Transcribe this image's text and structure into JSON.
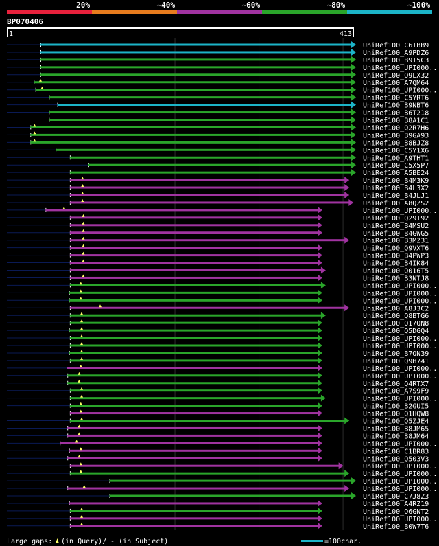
{
  "chart_data": {
    "type": "alignment-overview",
    "title": "BP070406",
    "query_start": "1",
    "query_end": "413",
    "query_length": 413,
    "identity_legend": [
      {
        "label": "20%",
        "color": "#e8213c"
      },
      {
        "label": "~40%",
        "color": "#e87c1e"
      },
      {
        "label": "~60%",
        "color": "#a033a0"
      },
      {
        "label": "~80%",
        "color": "#2aa52a"
      },
      {
        "label": "~100%",
        "color": "#1cb4c8"
      }
    ],
    "footer": {
      "gaps_label": "Large gaps:",
      "gaps_query": "(in Query)/",
      "gaps_subject": "- (in Subject)",
      "scale_label": "=100char."
    },
    "hits": [
      {
        "name": "UniRef100_C6TBB9",
        "start": 40,
        "end": 413,
        "pct": 100,
        "gaps": []
      },
      {
        "name": "UniRef100_A9PDZ6",
        "start": 40,
        "end": 413,
        "pct": 100,
        "gaps": []
      },
      {
        "name": "UniRef100_B9T5C3",
        "start": 40,
        "end": 413,
        "pct": 80,
        "gaps": []
      },
      {
        "name": "UniRef100_UPI000..",
        "start": 40,
        "end": 413,
        "pct": 80,
        "gaps": []
      },
      {
        "name": "UniRef100_Q9LX32",
        "start": 40,
        "end": 413,
        "pct": 80,
        "gaps": []
      },
      {
        "name": "UniRef100_A7QM64",
        "start": 32,
        "end": 413,
        "pct": 80,
        "gaps": [
          40
        ]
      },
      {
        "name": "UniRef100_UPI000..",
        "start": 34,
        "end": 413,
        "pct": 80,
        "gaps": [
          42
        ]
      },
      {
        "name": "UniRef100_C5YRT6",
        "start": 50,
        "end": 413,
        "pct": 80,
        "gaps": []
      },
      {
        "name": "UniRef100_B9NBT6",
        "start": 60,
        "end": 413,
        "pct": 100,
        "gaps": []
      },
      {
        "name": "UniRef100_B6T218",
        "start": 50,
        "end": 413,
        "pct": 80,
        "gaps": []
      },
      {
        "name": "UniRef100_B8A1C1",
        "start": 50,
        "end": 413,
        "pct": 80,
        "gaps": []
      },
      {
        "name": "UniRef100_Q2R7H6",
        "start": 28,
        "end": 413,
        "pct": 80,
        "gaps": [
          33
        ]
      },
      {
        "name": "UniRef100_B9GA93",
        "start": 28,
        "end": 413,
        "pct": 80,
        "gaps": [
          33
        ]
      },
      {
        "name": "UniRef100_B8BJZ8",
        "start": 28,
        "end": 413,
        "pct": 80,
        "gaps": [
          33
        ]
      },
      {
        "name": "UniRef100_C5Y1X6",
        "start": 58,
        "end": 413,
        "pct": 80,
        "gaps": []
      },
      {
        "name": "UniRef100_A9THT1",
        "start": 75,
        "end": 413,
        "pct": 80,
        "gaps": []
      },
      {
        "name": "UniRef100_C5X5P7",
        "start": 97,
        "end": 413,
        "pct": 80,
        "gaps": []
      },
      {
        "name": "UniRef100_A5BE24",
        "start": 75,
        "end": 413,
        "pct": 80,
        "gaps": []
      },
      {
        "name": "UniRef100_B4M3K9",
        "start": 75,
        "end": 405,
        "pct": 60,
        "gaps": [
          90
        ]
      },
      {
        "name": "UniRef100_B4L3X2",
        "start": 75,
        "end": 405,
        "pct": 60,
        "gaps": [
          90
        ]
      },
      {
        "name": "UniRef100_B4JLJ1",
        "start": 75,
        "end": 405,
        "pct": 60,
        "gaps": [
          90
        ]
      },
      {
        "name": "UniRef100_A8QZS2",
        "start": 75,
        "end": 410,
        "pct": 60,
        "gaps": [
          90
        ]
      },
      {
        "name": "UniRef100_UPI000..",
        "start": 46,
        "end": 373,
        "pct": 60,
        "gaps": [
          68
        ]
      },
      {
        "name": "UniRef100_Q29I92",
        "start": 75,
        "end": 373,
        "pct": 60,
        "gaps": [
          91
        ]
      },
      {
        "name": "UniRef100_B4MSU2",
        "start": 75,
        "end": 373,
        "pct": 60,
        "gaps": [
          91
        ]
      },
      {
        "name": "UniRef100_B4GWG5",
        "start": 75,
        "end": 373,
        "pct": 60,
        "gaps": [
          91
        ]
      },
      {
        "name": "UniRef100_B3MZ31",
        "start": 75,
        "end": 405,
        "pct": 60,
        "gaps": [
          91
        ]
      },
      {
        "name": "UniRef100_Q9VXT6",
        "start": 75,
        "end": 373,
        "pct": 60,
        "gaps": [
          91
        ]
      },
      {
        "name": "UniRef100_B4PWP3",
        "start": 75,
        "end": 373,
        "pct": 60,
        "gaps": [
          91
        ]
      },
      {
        "name": "UniRef100_B4IK84",
        "start": 75,
        "end": 373,
        "pct": 60,
        "gaps": [
          91
        ]
      },
      {
        "name": "UniRef100_Q016T5",
        "start": 75,
        "end": 377,
        "pct": 60,
        "gaps": []
      },
      {
        "name": "UniRef100_B3NTJ8",
        "start": 75,
        "end": 373,
        "pct": 60,
        "gaps": [
          91
        ]
      },
      {
        "name": "UniRef100_UPI000..",
        "start": 75,
        "end": 377,
        "pct": 80,
        "gaps": [
          88
        ]
      },
      {
        "name": "UniRef100_UPI000..",
        "start": 74,
        "end": 373,
        "pct": 80,
        "gaps": [
          88
        ]
      },
      {
        "name": "UniRef100_UPI000..",
        "start": 74,
        "end": 373,
        "pct": 80,
        "gaps": [
          88
        ]
      },
      {
        "name": "UniRef100_A8J3C2",
        "start": 75,
        "end": 405,
        "pct": 60,
        "gaps": [
          111
        ]
      },
      {
        "name": "UniRef100_Q8BTG6",
        "start": 75,
        "end": 377,
        "pct": 80,
        "gaps": [
          89
        ]
      },
      {
        "name": "UniRef100_Q17QN8",
        "start": 75,
        "end": 373,
        "pct": 80,
        "gaps": [
          89
        ]
      },
      {
        "name": "UniRef100_Q5DGQ4",
        "start": 74,
        "end": 373,
        "pct": 80,
        "gaps": [
          89
        ]
      },
      {
        "name": "UniRef100_UPI000..",
        "start": 75,
        "end": 373,
        "pct": 80,
        "gaps": [
          89
        ]
      },
      {
        "name": "UniRef100_UPI000..",
        "start": 75,
        "end": 373,
        "pct": 80,
        "gaps": [
          89
        ]
      },
      {
        "name": "UniRef100_B7QN39",
        "start": 74,
        "end": 373,
        "pct": 80,
        "gaps": [
          89
        ]
      },
      {
        "name": "UniRef100_Q9H741",
        "start": 75,
        "end": 373,
        "pct": 80,
        "gaps": [
          89
        ]
      },
      {
        "name": "UniRef100_UPI000..",
        "start": 71,
        "end": 373,
        "pct": 60,
        "gaps": [
          88
        ]
      },
      {
        "name": "UniRef100_UPI000..",
        "start": 72,
        "end": 373,
        "pct": 80,
        "gaps": [
          86
        ]
      },
      {
        "name": "UniRef100_Q4RTX7",
        "start": 72,
        "end": 373,
        "pct": 80,
        "gaps": [
          86
        ]
      },
      {
        "name": "UniRef100_A7S9F9",
        "start": 75,
        "end": 373,
        "pct": 80,
        "gaps": [
          89
        ]
      },
      {
        "name": "UniRef100_UPI000..",
        "start": 75,
        "end": 377,
        "pct": 80,
        "gaps": [
          89
        ]
      },
      {
        "name": "UniRef100_B2GUI5",
        "start": 75,
        "end": 373,
        "pct": 80,
        "gaps": [
          88
        ]
      },
      {
        "name": "UniRef100_Q1HQW8",
        "start": 75,
        "end": 373,
        "pct": 60,
        "gaps": [
          88
        ]
      },
      {
        "name": "UniRef100_Q5ZJE4",
        "start": 75,
        "end": 405,
        "pct": 80,
        "gaps": [
          89
        ]
      },
      {
        "name": "UniRef100_B8JM65",
        "start": 72,
        "end": 373,
        "pct": 60,
        "gaps": [
          86
        ]
      },
      {
        "name": "UniRef100_B8JM64",
        "start": 72,
        "end": 373,
        "pct": 60,
        "gaps": [
          86
        ]
      },
      {
        "name": "UniRef100_UPI000..",
        "start": 63,
        "end": 373,
        "pct": 60,
        "gaps": [
          83
        ]
      },
      {
        "name": "UniRef100_C1BR83",
        "start": 74,
        "end": 373,
        "pct": 60,
        "gaps": [
          88
        ]
      },
      {
        "name": "UniRef100_Q503V3",
        "start": 72,
        "end": 373,
        "pct": 60,
        "gaps": [
          86
        ]
      },
      {
        "name": "UniRef100_UPI000..",
        "start": 75,
        "end": 398,
        "pct": 60,
        "gaps": [
          88
        ]
      },
      {
        "name": "UniRef100_UPI000..",
        "start": 75,
        "end": 405,
        "pct": 80,
        "gaps": [
          88
        ]
      },
      {
        "name": "UniRef100_UPI000..",
        "start": 122,
        "end": 413,
        "pct": 80,
        "gaps": []
      },
      {
        "name": "UniRef100_UPI000..",
        "start": 72,
        "end": 405,
        "pct": 60,
        "gaps": [
          92
        ]
      },
      {
        "name": "UniRef100_C7J8Z3",
        "start": 122,
        "end": 413,
        "pct": 80,
        "gaps": []
      },
      {
        "name": "UniRef100_A4RZ19",
        "start": 74,
        "end": 373,
        "pct": 60,
        "gaps": []
      },
      {
        "name": "UniRef100_Q6GNT2",
        "start": 75,
        "end": 373,
        "pct": 80,
        "gaps": [
          89
        ]
      },
      {
        "name": "UniRef100_UPI000..",
        "start": 75,
        "end": 373,
        "pct": 60,
        "gaps": [
          89
        ]
      },
      {
        "name": "UniRef100_B0W7T6",
        "start": 75,
        "end": 373,
        "pct": 60,
        "gaps": [
          89
        ]
      }
    ]
  }
}
